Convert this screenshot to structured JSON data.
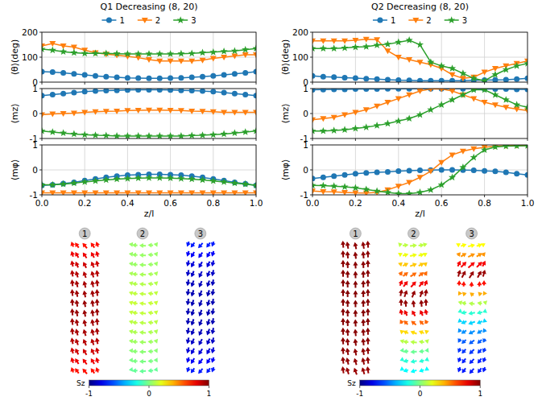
{
  "chart_data": [
    {
      "type": "line",
      "title": "Q1 Decreasing (8, 20)",
      "legend": "top",
      "grid": true,
      "tick_labels": "y",
      "y_label": "⟨θ⟩(deg)",
      "x": [
        0,
        0.05,
        0.1,
        0.15,
        0.2,
        0.25,
        0.3,
        0.35,
        0.4,
        0.45,
        0.5,
        0.55,
        0.6,
        0.65,
        0.7,
        0.75,
        0.8,
        0.85,
        0.9,
        0.95,
        1.0
      ],
      "xlim": [
        0,
        1
      ],
      "xticks": [
        {
          "value": 0,
          "label": "0.0"
        },
        {
          "value": 0.2,
          "label": "0.2"
        },
        {
          "value": 0.4,
          "label": "0.4"
        },
        {
          "value": 0.6,
          "label": "0.6"
        },
        {
          "value": 0.8,
          "label": "0.8"
        },
        {
          "value": 1,
          "label": "1.0"
        }
      ],
      "ylim": [
        0,
        200
      ],
      "yticks": [
        0,
        100,
        200
      ],
      "series": [
        {
          "name": "1",
          "color": "#1f77b4",
          "marker": "circle",
          "values": [
            42,
            40,
            37,
            33,
            29,
            25,
            22,
            19,
            17,
            16,
            15,
            15,
            16,
            17,
            19,
            22,
            25,
            29,
            33,
            37,
            42
          ]
        },
        {
          "name": "2",
          "color": "#ff7f0e",
          "marker": "triangle_down",
          "values": [
            145,
            155,
            145,
            140,
            128,
            118,
            112,
            108,
            103,
            98,
            90,
            85,
            85,
            85,
            85,
            88,
            95,
            100,
            105,
            110,
            110
          ]
        },
        {
          "name": "3",
          "color": "#2ca02c",
          "marker": "star",
          "values": [
            132,
            128,
            122,
            118,
            115,
            115,
            115,
            114,
            113,
            113,
            113,
            113,
            113,
            114,
            115,
            118,
            120,
            123,
            125,
            130,
            135
          ]
        }
      ]
    },
    {
      "type": "line",
      "grid": true,
      "tick_labels": "y",
      "y_label": "⟨mz⟩",
      "x": [
        0,
        0.05,
        0.1,
        0.15,
        0.2,
        0.25,
        0.3,
        0.35,
        0.4,
        0.45,
        0.5,
        0.55,
        0.6,
        0.65,
        0.7,
        0.75,
        0.8,
        0.85,
        0.9,
        0.95,
        1.0
      ],
      "xlim": [
        0,
        1
      ],
      "xticks": [
        {
          "value": 0,
          "label": "0.0"
        },
        {
          "value": 0.2,
          "label": "0.2"
        },
        {
          "value": 0.4,
          "label": "0.4"
        },
        {
          "value": 0.6,
          "label": "0.6"
        },
        {
          "value": 0.8,
          "label": "0.8"
        },
        {
          "value": 1,
          "label": "1.0"
        }
      ],
      "ylim": [
        -1,
        1
      ],
      "yticks": [
        -1,
        0,
        1
      ],
      "series": [
        {
          "color": "#1f77b4",
          "marker": "circle",
          "values": [
            0.72,
            0.76,
            0.8,
            0.84,
            0.88,
            0.9,
            0.92,
            0.93,
            0.94,
            0.95,
            0.95,
            0.95,
            0.94,
            0.93,
            0.92,
            0.9,
            0.88,
            0.84,
            0.8,
            0.76,
            0.72
          ]
        },
        {
          "color": "#ff7f0e",
          "marker": "triangle_down",
          "values": [
            -0.05,
            -0.02,
            0,
            0.02,
            0.05,
            0.07,
            0.09,
            0.1,
            0.12,
            0.13,
            0.14,
            0.14,
            0.13,
            0.12,
            0.1,
            0.09,
            0.07,
            0.05,
            0.05,
            0.05,
            0.05
          ]
        },
        {
          "color": "#2ca02c",
          "marker": "star",
          "values": [
            -0.7,
            -0.74,
            -0.78,
            -0.82,
            -0.85,
            -0.87,
            -0.88,
            -0.9,
            -0.9,
            -0.9,
            -0.9,
            -0.9,
            -0.9,
            -0.9,
            -0.88,
            -0.87,
            -0.85,
            -0.82,
            -0.78,
            -0.74,
            -0.7
          ]
        }
      ]
    },
    {
      "type": "line",
      "grid": true,
      "tick_labels": true,
      "y_label": "⟨mφ⟩",
      "x_label": "z/l",
      "x": [
        0,
        0.05,
        0.1,
        0.15,
        0.2,
        0.25,
        0.3,
        0.35,
        0.4,
        0.45,
        0.5,
        0.55,
        0.6,
        0.65,
        0.7,
        0.75,
        0.8,
        0.85,
        0.9,
        0.95,
        1.0
      ],
      "xlim": [
        0,
        1
      ],
      "xticks": [
        {
          "value": 0,
          "label": "0.0"
        },
        {
          "value": 0.2,
          "label": "0.2"
        },
        {
          "value": 0.4,
          "label": "0.4"
        },
        {
          "value": 0.6,
          "label": "0.6"
        },
        {
          "value": 0.8,
          "label": "0.8"
        },
        {
          "value": 1,
          "label": "1.0"
        }
      ],
      "ylim": [
        -1,
        1
      ],
      "yticks": [
        -1,
        0,
        1
      ],
      "series": [
        {
          "color": "#1f77b4",
          "marker": "circle",
          "values": [
            -0.62,
            -0.6,
            -0.55,
            -0.5,
            -0.43,
            -0.36,
            -0.3,
            -0.25,
            -0.21,
            -0.19,
            -0.18,
            -0.18,
            -0.19,
            -0.21,
            -0.25,
            -0.3,
            -0.36,
            -0.43,
            -0.5,
            -0.56,
            -0.62
          ]
        },
        {
          "color": "#ff7f0e",
          "marker": "triangle_down",
          "values": [
            -0.92,
            -0.92,
            -0.92,
            -0.92,
            -0.92,
            -0.92,
            -0.92,
            -0.92,
            -0.92,
            -0.92,
            -0.92,
            -0.92,
            -0.92,
            -0.92,
            -0.92,
            -0.92,
            -0.92,
            -0.92,
            -0.92,
            -0.92,
            -0.92
          ]
        },
        {
          "color": "#2ca02c",
          "marker": "star",
          "values": [
            -0.6,
            -0.6,
            -0.57,
            -0.53,
            -0.48,
            -0.44,
            -0.4,
            -0.37,
            -0.35,
            -0.33,
            -0.32,
            -0.32,
            -0.33,
            -0.35,
            -0.37,
            -0.4,
            -0.44,
            -0.48,
            -0.53,
            -0.57,
            -0.62
          ]
        }
      ]
    },
    {
      "type": "line",
      "title": "Q2 Decreasing (8, 20)",
      "legend": "top",
      "grid": true,
      "tick_labels": "y",
      "y_label": "⟨θ⟩(deg)",
      "x": [
        0,
        0.05,
        0.1,
        0.15,
        0.2,
        0.25,
        0.3,
        0.35,
        0.4,
        0.45,
        0.5,
        0.55,
        0.6,
        0.65,
        0.7,
        0.75,
        0.8,
        0.85,
        0.9,
        0.95,
        1.0
      ],
      "xlim": [
        0,
        1
      ],
      "xticks": [
        {
          "value": 0,
          "label": "0.0"
        },
        {
          "value": 0.2,
          "label": "0.2"
        },
        {
          "value": 0.4,
          "label": "0.4"
        },
        {
          "value": 0.6,
          "label": "0.6"
        },
        {
          "value": 0.8,
          "label": "0.8"
        },
        {
          "value": 1,
          "label": "1.0"
        }
      ],
      "ylim": [
        0,
        200
      ],
      "yticks": [
        0,
        100,
        200
      ],
      "series": [
        {
          "name": "1",
          "color": "#1f77b4",
          "marker": "circle",
          "values": [
            25,
            22,
            20,
            18,
            16,
            14,
            12,
            10,
            8,
            7,
            6,
            6,
            6,
            6,
            6,
            7,
            8,
            9,
            10,
            12,
            15
          ]
        },
        {
          "name": "2",
          "color": "#ff7f0e",
          "marker": "triangle_down",
          "values": [
            165,
            165,
            165,
            165,
            168,
            172,
            170,
            125,
            100,
            90,
            80,
            70,
            55,
            30,
            15,
            20,
            40,
            55,
            65,
            75,
            85
          ]
        },
        {
          "name": "3",
          "color": "#2ca02c",
          "marker": "star",
          "values": [
            135,
            135,
            135,
            137,
            140,
            142,
            148,
            152,
            160,
            168,
            150,
            80,
            65,
            55,
            35,
            15,
            5,
            30,
            50,
            65,
            75
          ]
        }
      ]
    },
    {
      "type": "line",
      "grid": true,
      "tick_labels": "y",
      "y_label": "⟨mz⟩",
      "x": [
        0,
        0.05,
        0.1,
        0.15,
        0.2,
        0.25,
        0.3,
        0.35,
        0.4,
        0.45,
        0.5,
        0.55,
        0.6,
        0.65,
        0.7,
        0.75,
        0.8,
        0.85,
        0.9,
        0.95,
        1.0
      ],
      "xlim": [
        0,
        1
      ],
      "xticks": [
        {
          "value": 0,
          "label": "0.0"
        },
        {
          "value": 0.2,
          "label": "0.2"
        },
        {
          "value": 0.4,
          "label": "0.4"
        },
        {
          "value": 0.6,
          "label": "0.6"
        },
        {
          "value": 0.8,
          "label": "0.8"
        },
        {
          "value": 1,
          "label": "1.0"
        }
      ],
      "ylim": [
        -1,
        1
      ],
      "yticks": [
        -1,
        0,
        1
      ],
      "series": [
        {
          "color": "#1f77b4",
          "marker": "circle",
          "values": [
            0.95,
            0.96,
            0.97,
            0.97,
            0.98,
            0.98,
            0.98,
            0.99,
            0.99,
            0.99,
            0.99,
            0.99,
            0.99,
            0.99,
            0.99,
            0.99,
            0.98,
            0.98,
            0.98,
            0.97,
            0.97
          ]
        },
        {
          "color": "#ff7f0e",
          "marker": "triangle_down",
          "values": [
            -0.25,
            -0.2,
            -0.15,
            -0.05,
            0.05,
            0.15,
            0.3,
            0.45,
            0.6,
            0.75,
            0.9,
            0.98,
            0.98,
            0.9,
            0.75,
            0.6,
            0.45,
            0.35,
            0.25,
            0.18,
            0.12
          ]
        },
        {
          "color": "#2ca02c",
          "marker": "star",
          "values": [
            -0.7,
            -0.7,
            -0.68,
            -0.65,
            -0.6,
            -0.55,
            -0.48,
            -0.4,
            -0.3,
            -0.2,
            -0.05,
            0.15,
            0.35,
            0.55,
            0.75,
            0.95,
            0.95,
            0.75,
            0.55,
            0.35,
            0.25
          ]
        }
      ]
    },
    {
      "type": "line",
      "grid": true,
      "tick_labels": true,
      "y_label": "⟨mφ⟩",
      "x_label": "z/l",
      "x": [
        0,
        0.05,
        0.1,
        0.15,
        0.2,
        0.25,
        0.3,
        0.35,
        0.4,
        0.45,
        0.5,
        0.55,
        0.6,
        0.65,
        0.7,
        0.75,
        0.8,
        0.85,
        0.9,
        0.95,
        1.0
      ],
      "xlim": [
        0,
        1
      ],
      "xticks": [
        {
          "value": 0,
          "label": "0.0"
        },
        {
          "value": 0.2,
          "label": "0.2"
        },
        {
          "value": 0.4,
          "label": "0.4"
        },
        {
          "value": 0.6,
          "label": "0.6"
        },
        {
          "value": 0.8,
          "label": "0.8"
        },
        {
          "value": 1,
          "label": "1.0"
        }
      ],
      "ylim": [
        -1,
        1
      ],
      "yticks": [
        -1,
        0,
        1
      ],
      "series": [
        {
          "color": "#1f77b4",
          "marker": "circle",
          "values": [
            -0.35,
            -0.3,
            -0.25,
            -0.2,
            -0.15,
            -0.12,
            -0.1,
            -0.08,
            -0.05,
            -0.03,
            -0.02,
            -0.01,
            0,
            0,
            -0.01,
            -0.02,
            -0.04,
            -0.06,
            -0.1,
            -0.15,
            -0.2
          ]
        },
        {
          "color": "#ff7f0e",
          "marker": "triangle_down",
          "values": [
            -0.85,
            -0.87,
            -0.88,
            -0.9,
            -0.92,
            -0.93,
            -0.9,
            -0.8,
            -0.65,
            -0.5,
            -0.3,
            -0.05,
            0.3,
            0.6,
            0.75,
            0.85,
            0.9,
            0.95,
            0.97,
            0.98,
            0.98
          ]
        },
        {
          "color": "#2ca02c",
          "marker": "star",
          "values": [
            -0.62,
            -0.63,
            -0.65,
            -0.68,
            -0.72,
            -0.78,
            -0.85,
            -0.9,
            -0.95,
            -0.95,
            -0.9,
            -0.8,
            -0.6,
            -0.3,
            0.1,
            0.5,
            0.8,
            0.92,
            0.95,
            0.96,
            0.97
          ]
        }
      ]
    }
  ],
  "renders": [
    {
      "labels": [
        "1",
        "2",
        "3"
      ],
      "colorbar": {
        "label": "Sz",
        "range": [
          -1,
          1
        ],
        "ticks": [
          -1,
          0,
          1
        ]
      }
    },
    {
      "labels": [
        "1",
        "2",
        "3"
      ],
      "colorbar": {
        "label": "Sz",
        "range": [
          -1,
          1
        ],
        "ticks": [
          -1,
          0,
          1
        ]
      }
    }
  ]
}
